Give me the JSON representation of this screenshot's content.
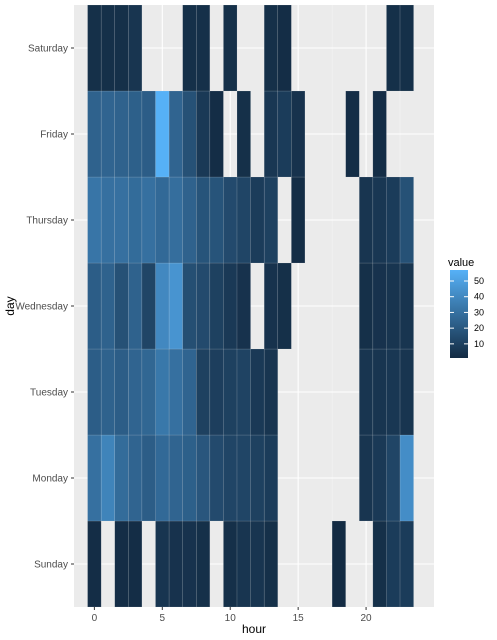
{
  "chart_data": {
    "type": "heatmap",
    "title": "",
    "xlabel": "hour",
    "ylabel": "day",
    "x_ticks": [
      0,
      5,
      10,
      15,
      20
    ],
    "xlim": [
      -1.5,
      25
    ],
    "days": [
      "Sunday",
      "Monday",
      "Tuesday",
      "Wednesday",
      "Thursday",
      "Friday",
      "Saturday"
    ],
    "hours": [
      0,
      1,
      2,
      3,
      4,
      5,
      6,
      7,
      8,
      9,
      10,
      11,
      12,
      13,
      14,
      15,
      16,
      17,
      18,
      19,
      20,
      21,
      22,
      23
    ],
    "values": {
      "Sunday": [
        2,
        null,
        2,
        2,
        null,
        5,
        4,
        4,
        3,
        null,
        3,
        5,
        5,
        3,
        null,
        null,
        null,
        null,
        1,
        null,
        null,
        3,
        8,
        8
      ],
      "Monday": [
        30,
        38,
        28,
        25,
        22,
        27,
        25,
        23,
        19,
        14,
        12,
        12,
        10,
        8,
        null,
        null,
        null,
        null,
        null,
        null,
        5,
        7,
        12,
        42
      ],
      "Tuesday": [
        22,
        24,
        22,
        25,
        26,
        33,
        30,
        25,
        10,
        9,
        10,
        11,
        7,
        5,
        null,
        null,
        null,
        null,
        null,
        null,
        5,
        5,
        6,
        5
      ],
      "Wednesday": [
        22,
        24,
        17,
        24,
        12,
        40,
        45,
        16,
        14,
        10,
        7,
        4,
        null,
        4,
        3,
        null,
        null,
        null,
        null,
        null,
        3,
        4,
        5,
        5
      ],
      "Thursday": [
        32,
        30,
        30,
        28,
        30,
        27,
        29,
        24,
        18,
        18,
        14,
        12,
        8,
        10,
        null,
        2,
        null,
        null,
        null,
        null,
        5,
        6,
        8,
        17
      ],
      "Friday": [
        24,
        25,
        24,
        23,
        22,
        57,
        25,
        17,
        7,
        2,
        null,
        3,
        null,
        6,
        8,
        4,
        null,
        null,
        null,
        2,
        null,
        2,
        null,
        null
      ],
      "Saturday": [
        3,
        3,
        3,
        5,
        null,
        null,
        null,
        3,
        3,
        null,
        3,
        null,
        null,
        3,
        2,
        null,
        null,
        null,
        null,
        null,
        null,
        null,
        3,
        3
      ]
    },
    "legend": {
      "title": "value",
      "ticks": [
        10,
        20,
        30,
        40,
        50
      ],
      "range": [
        1,
        57
      ],
      "low_color": "#132b43",
      "high_color": "#56b1f7"
    },
    "grid": true,
    "panel_background": "#ebebeb",
    "legend_position": "right"
  }
}
